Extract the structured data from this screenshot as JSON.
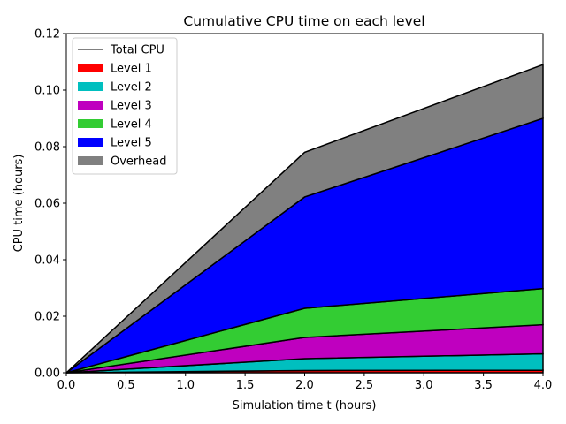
{
  "chart_data": {
    "type": "area",
    "title": "Cumulative CPU time on each level",
    "xlabel": "Simulation time t (hours)",
    "ylabel": "CPU time (hours)",
    "x": [
      0.0,
      2.0,
      4.0
    ],
    "xlim": [
      0.0,
      4.0
    ],
    "ylim": [
      0.0,
      0.12
    ],
    "xticks": [
      "0.0",
      "0.5",
      "1.0",
      "1.5",
      "2.0",
      "2.5",
      "3.0",
      "3.5",
      "4.0"
    ],
    "yticks": [
      "0.00",
      "0.02",
      "0.04",
      "0.06",
      "0.08",
      "0.10",
      "0.12"
    ],
    "stacked": true,
    "grid": false,
    "legend_position": "top-left",
    "total_line": {
      "name": "Total CPU",
      "color": "#000000",
      "values": [
        0.0,
        0.078,
        0.109
      ]
    },
    "series": [
      {
        "name": "Level 1",
        "color": "#ff0000",
        "values": [
          0.0,
          0.0008,
          0.0009
        ]
      },
      {
        "name": "Level 2",
        "color": "#00bfbf",
        "values": [
          0.0,
          0.0042,
          0.0058
        ]
      },
      {
        "name": "Level 3",
        "color": "#bf00bf",
        "values": [
          0.0,
          0.0075,
          0.0103
        ]
      },
      {
        "name": "Level 4",
        "color": "#33cc33",
        "values": [
          0.0,
          0.0103,
          0.0128
        ]
      },
      {
        "name": "Level 5",
        "color": "#0000ff",
        "values": [
          0.0,
          0.0394,
          0.0602
        ]
      },
      {
        "name": "Overhead",
        "color": "#808080",
        "values": [
          0.0,
          0.0158,
          0.019
        ]
      }
    ]
  }
}
